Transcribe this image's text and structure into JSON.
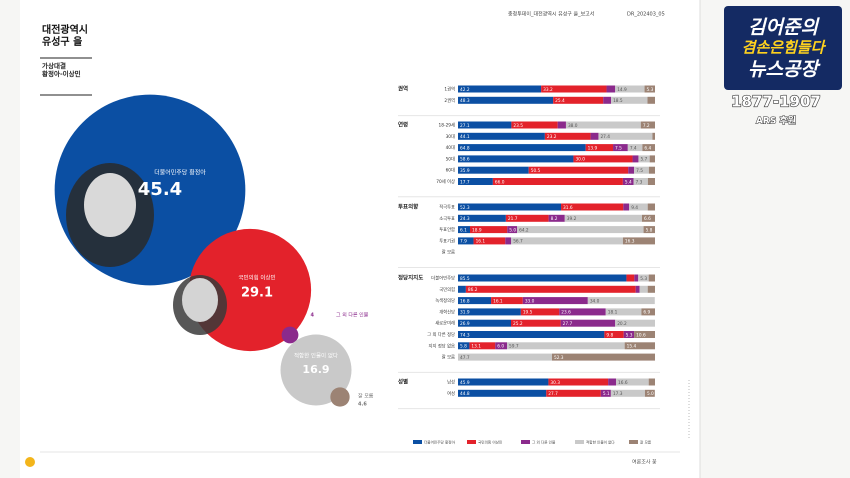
{
  "header": {
    "title": "대전광역시\n유성구 을",
    "subtitle": "가상대결\n황정아-이상민",
    "report": "충청투데이_대전광역시 유성구 을_보고서",
    "code": "DR_202403_05"
  },
  "footer": {
    "brand": "여론조사 꽃"
  },
  "logo": {
    "line1": "김어준의",
    "line2": "겸손은힘들다",
    "line3": "뉴스공장",
    "phone": "1877-1907",
    "note": "ARS 후원"
  },
  "chart_data": [
    {
      "type": "bubble",
      "categories": [
        "더불어민주당 황정아",
        "국민의힘 이상민",
        "그 외 다른 인물",
        "적합한 인물이 없다",
        "잘 모름"
      ],
      "values": [
        45.4,
        29.1,
        4.0,
        16.9,
        4.6
      ],
      "colors": [
        "#0b4fa3",
        "#e3222b",
        "#8b2a8c",
        "#c9c9c9",
        "#9c8374"
      ]
    },
    {
      "type": "stacked-bar",
      "groups": [
        {
          "label": "권역",
          "categories": [
            "1권역",
            "2권역"
          ]
        },
        {
          "label": "연령",
          "categories": [
            "18-29세",
            "30대",
            "40대",
            "50대",
            "60대",
            "70세 이상"
          ]
        },
        {
          "label": "투표의향",
          "categories": [
            "적극투표",
            "소극투표",
            "투표안함",
            "투표기권",
            "잘 모름"
          ]
        },
        {
          "label": "정당지지도",
          "categories": [
            "더불어민주당",
            "국민의힘",
            "녹색정의당",
            "개혁신당",
            "새로운미래",
            "그 외 다른 정당",
            "지지 정당 없음",
            "잘 모름"
          ]
        },
        {
          "label": "성별",
          "categories": [
            "남성",
            "여성"
          ]
        }
      ],
      "xlim": [
        0,
        100
      ],
      "series": [
        {
          "name": "더불어민주당 황정아",
          "color": "#0b4fa3",
          "values": [
            42.2,
            48.3,
            27.1,
            44.1,
            64.8,
            58.6,
            35.9,
            17.7,
            52.3,
            24.3,
            6.1,
            7.9,
            null,
            85.5,
            4.0,
            16.8,
            31.9,
            26.9,
            74.3,
            5.8,
            null,
            45.9,
            44.8
          ],
          "value_labels": [
            "42.2",
            "48.3",
            "27.1",
            "44.1",
            "64.8",
            "58.6",
            "35.9",
            "17.7",
            "52.3",
            "24.3",
            "6.1",
            "7.9",
            null,
            "85.5",
            null,
            "16.8",
            "31.9",
            "26.9",
            "74.3",
            "5.8",
            null,
            "45.9",
            "44.8"
          ]
        },
        {
          "name": "국민의힘 이상민",
          "color": "#e3222b",
          "values": [
            33.2,
            25.4,
            23.5,
            23.2,
            13.9,
            30.0,
            50.5,
            66.0,
            31.6,
            21.7,
            18.9,
            16.1,
            null,
            4.0,
            86.2,
            16.1,
            19.5,
            25.2,
            9.8,
            13.1,
            null,
            30.3,
            27.7
          ],
          "value_labels": [
            "33.2",
            "25.4",
            "23.5",
            "23.2",
            "13.9",
            "30.0",
            "50.5",
            "66.0",
            "31.6",
            "21.7",
            "18.9",
            "16.1",
            null,
            null,
            "86.2",
            "16.1",
            "19.5",
            "25.2",
            "9.8",
            "13.1",
            null,
            "30.3",
            "27.7"
          ]
        },
        {
          "name": "그 외 다른 인물",
          "color": "#8b2a8c",
          "values": [
            4.4,
            4.0,
            4.2,
            4.0,
            7.5,
            3.0,
            3.0,
            5.4,
            3.0,
            8.2,
            5.0,
            3.0,
            null,
            2.0,
            2.0,
            33.0,
            23.6,
            27.7,
            5.3,
            6.0,
            null,
            4.0,
            5.1
          ],
          "value_labels": [
            null,
            null,
            null,
            null,
            "7.5",
            null,
            null,
            "5.4",
            null,
            "8.2",
            "5.0",
            null,
            null,
            null,
            null,
            "33.0",
            "23.6",
            "27.7",
            "5.3",
            "6.0",
            null,
            null,
            "5.1"
          ]
        },
        {
          "name": "적합한 인물이 없다",
          "color": "#c9c9c9",
          "values": [
            14.9,
            18.5,
            38.0,
            27.4,
            7.4,
            5.7,
            7.5,
            7.3,
            9.4,
            39.2,
            64.2,
            56.7,
            null,
            5.3,
            4.1,
            34.0,
            18.1,
            20.2,
            null,
            59.7,
            47.7,
            16.6,
            17.3
          ],
          "value_labels": [
            "14.9",
            "18.5",
            "38.0",
            "27.4",
            "7.4",
            "5.7",
            "7.5",
            "7.3",
            "9.4",
            "39.2",
            "64.2",
            "56.7",
            null,
            "5.3",
            null,
            "34.0",
            "18.1",
            "20.2",
            null,
            "59.7",
            "47.7",
            "16.6",
            "17.3"
          ]
        },
        {
          "name": "잘 모름",
          "color": "#9c8374",
          "values": [
            5.3,
            3.8,
            7.2,
            1.3,
            6.4,
            2.7,
            3.1,
            3.6,
            3.7,
            6.6,
            5.8,
            16.3,
            null,
            3.2,
            3.7,
            null,
            6.9,
            null,
            10.6,
            15.4,
            52.3,
            3.2,
            5.0
          ],
          "value_labels": [
            "5.3",
            null,
            "7.2",
            null,
            "6.4",
            null,
            null,
            null,
            null,
            "6.6",
            "5.8",
            "16.3",
            null,
            null,
            null,
            null,
            "6.9",
            null,
            "10.6",
            "15.4",
            "52.3",
            null,
            "5.0"
          ]
        }
      ]
    }
  ]
}
